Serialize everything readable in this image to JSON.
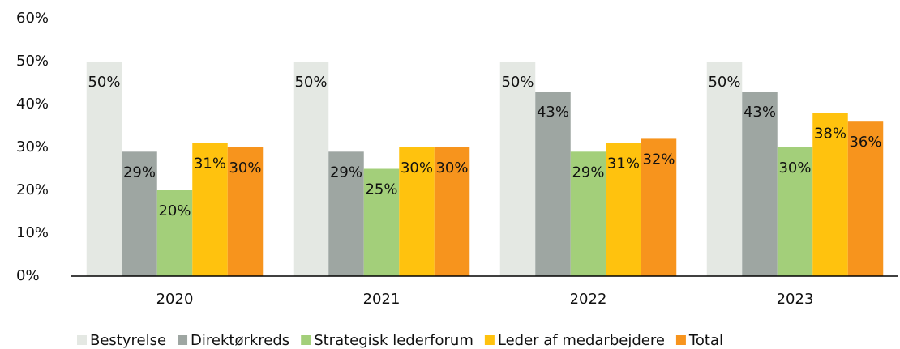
{
  "chart_data": {
    "type": "bar",
    "categories": [
      "2020",
      "2021",
      "2022",
      "2023"
    ],
    "series": [
      {
        "name": "Bestyrelse",
        "color": "#e4e8e3",
        "values": [
          50,
          50,
          50,
          50
        ],
        "value_labels": [
          "50%",
          "50%",
          "50%",
          "50%"
        ]
      },
      {
        "name": "Direktørkreds",
        "color": "#9ea6a2",
        "values": [
          29,
          29,
          43,
          43
        ],
        "value_labels": [
          "29%",
          "29%",
          "43%",
          "43%"
        ]
      },
      {
        "name": "Strategisk lederforum",
        "color": "#a3cf7a",
        "values": [
          20,
          25,
          29,
          30
        ],
        "value_labels": [
          "20%",
          "25%",
          "29%",
          "30%"
        ]
      },
      {
        "name": "Leder af medarbejdere",
        "color": "#ffc20e",
        "values": [
          31,
          30,
          31,
          38
        ],
        "value_labels": [
          "31%",
          "30%",
          "31%",
          "38%"
        ]
      },
      {
        "name": "Total",
        "color": "#f7941d",
        "values": [
          30,
          30,
          32,
          36
        ],
        "value_labels": [
          "30%",
          "30%",
          "32%",
          "36%"
        ]
      }
    ],
    "ylim": [
      0,
      60
    ],
    "yticks": [
      {
        "value": 0,
        "label": "0%"
      },
      {
        "value": 10,
        "label": "10%"
      },
      {
        "value": 20,
        "label": "20%"
      },
      {
        "value": 30,
        "label": "30%"
      },
      {
        "value": 40,
        "label": "40%"
      },
      {
        "value": 50,
        "label": "50%"
      },
      {
        "value": 60,
        "label": "60%"
      }
    ],
    "grid": false,
    "legend": "bottom"
  }
}
